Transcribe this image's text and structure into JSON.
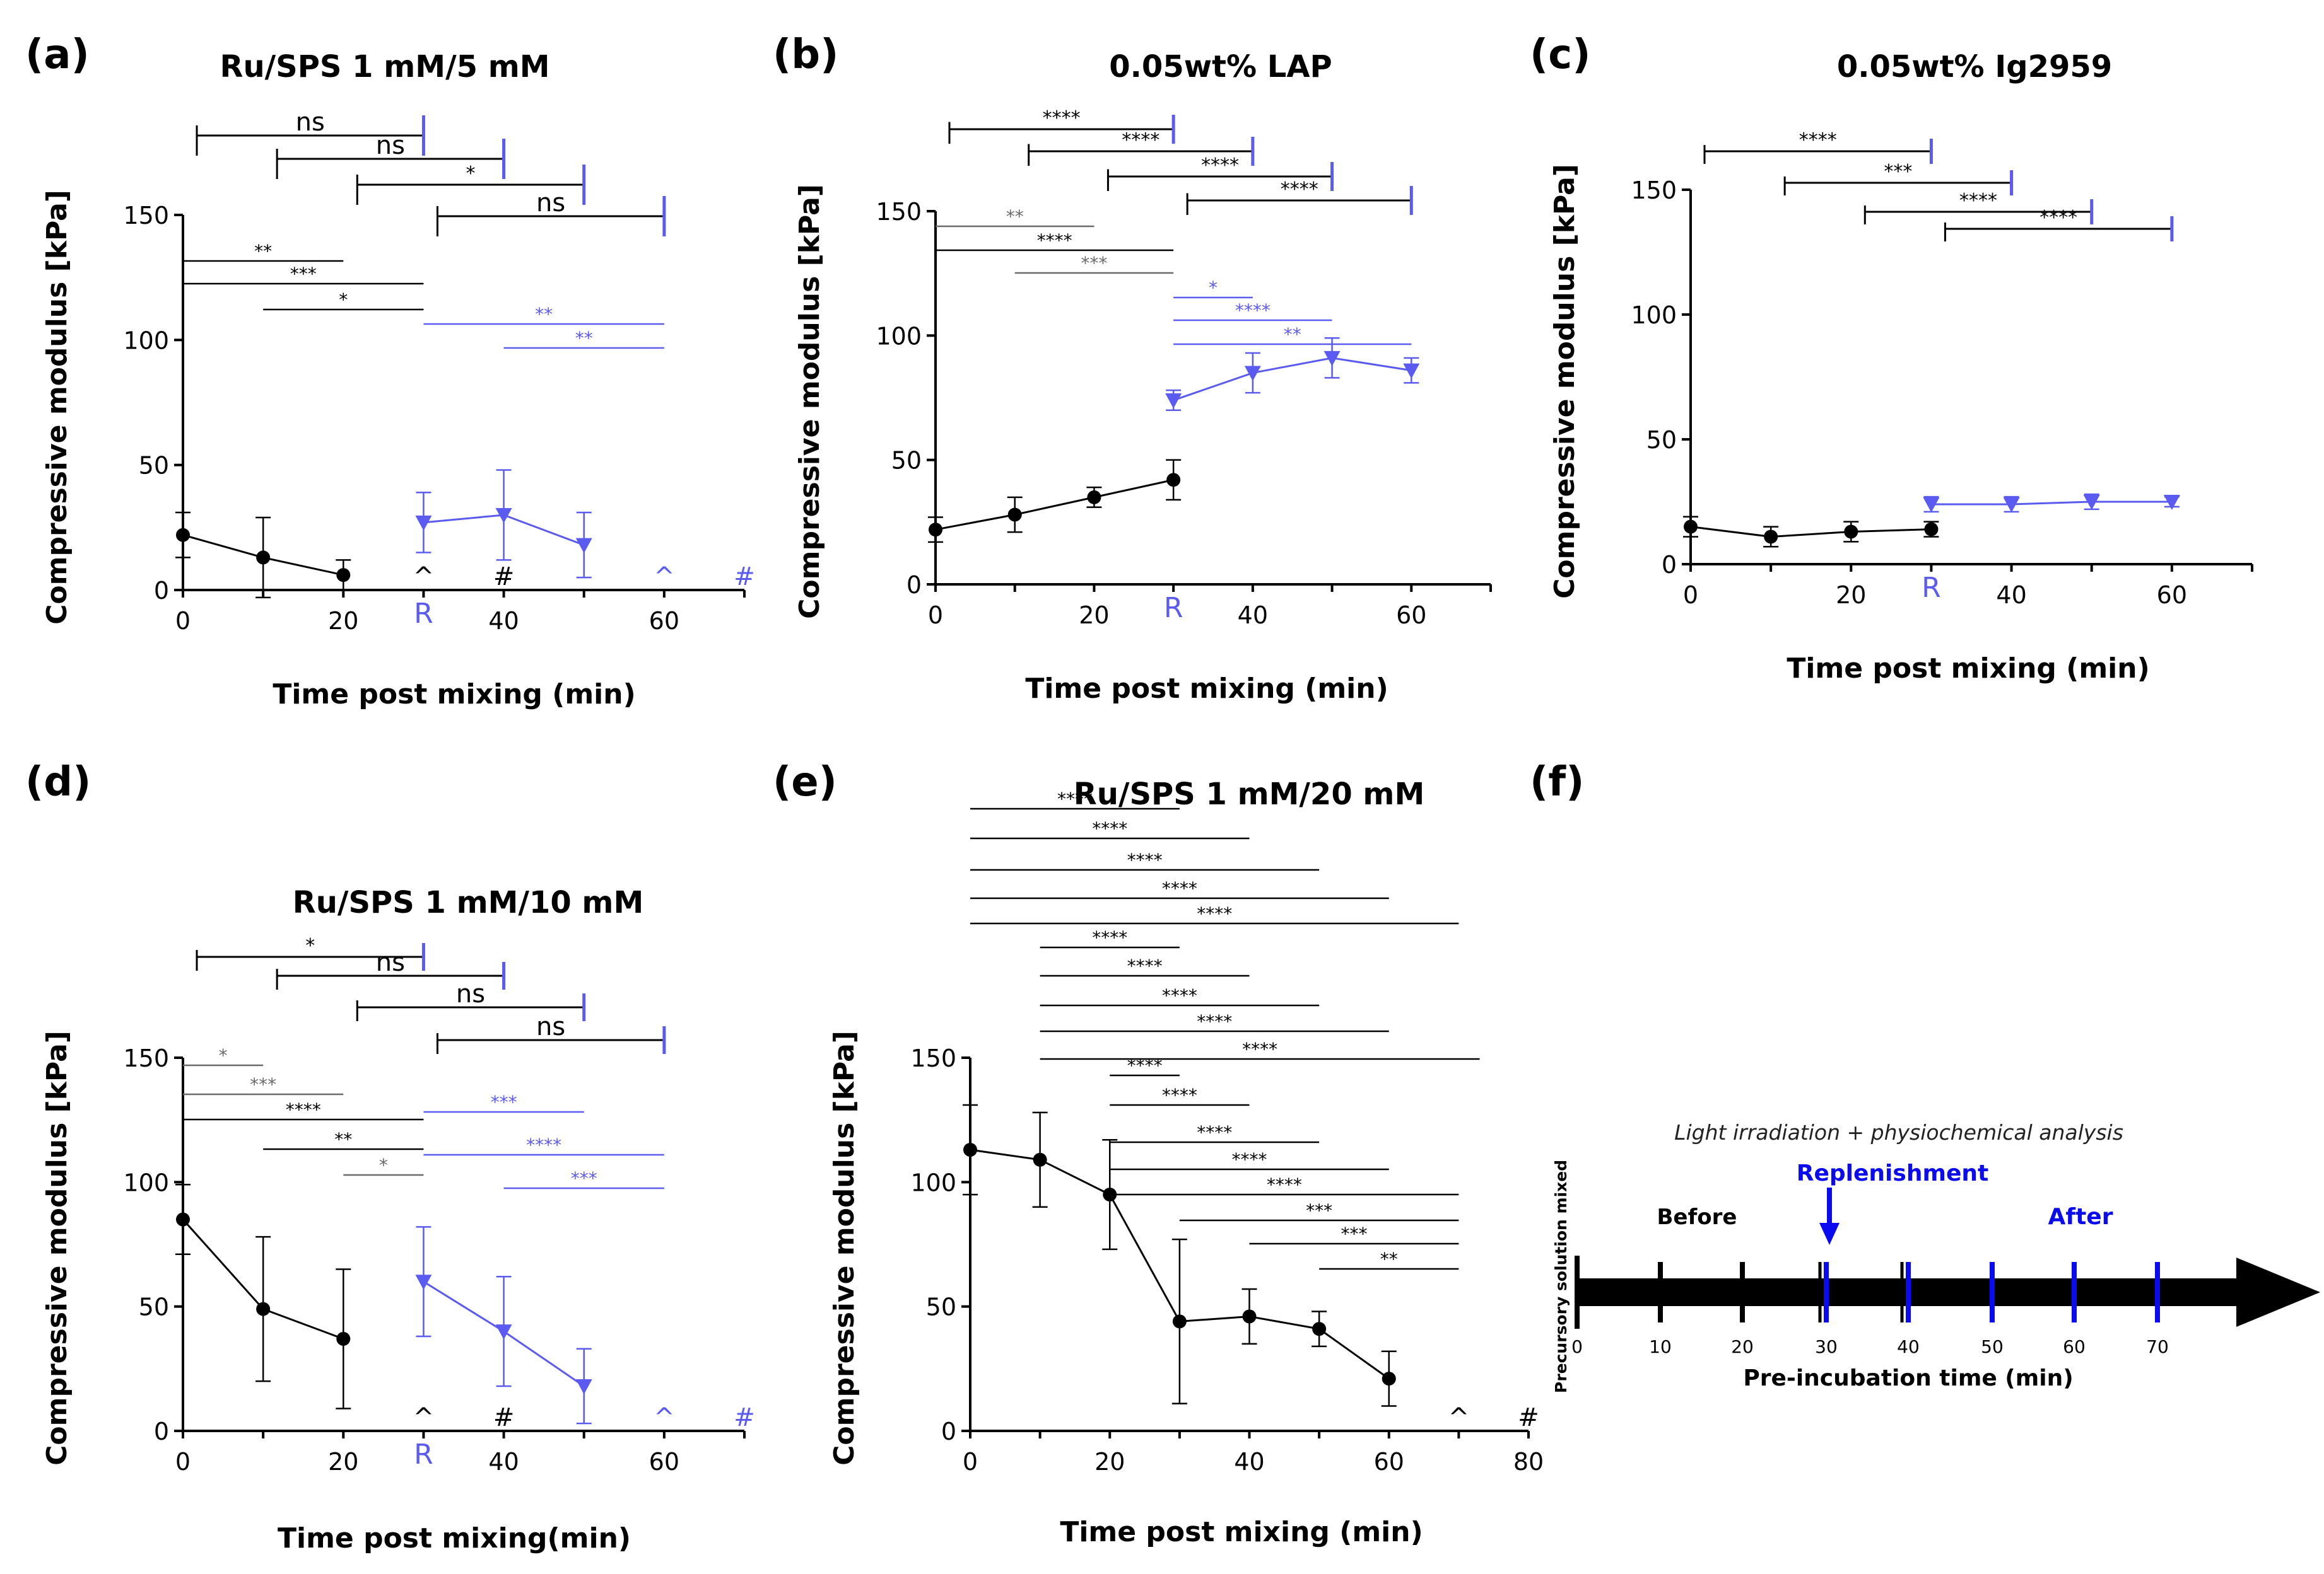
{
  "colors": {
    "black": "#000000",
    "blue": "#5b5bf2",
    "gray": "#6a6a6a",
    "arrow_blue": "#0b0bf0"
  },
  "chart_data": [
    {
      "id": "a",
      "panel_label": "(a)",
      "type": "line",
      "title": "Ru/SPS 1 mM/5 mM",
      "xlabel": "Time post mixing (min)",
      "ylabel": "Compressive modulus [kPa]",
      "xlim": [
        0,
        70
      ],
      "ylim": [
        0,
        150
      ],
      "xticks": [
        "0",
        "20",
        "40",
        "60"
      ],
      "yticks": [
        "0",
        "50",
        "100",
        "150"
      ],
      "r_label": "R",
      "series": [
        {
          "name": "before",
          "color": "black",
          "x": [
            0,
            10,
            20
          ],
          "y": [
            22,
            13,
            6
          ],
          "err": [
            9,
            16,
            6
          ]
        },
        {
          "name": "after",
          "color": "blue",
          "x": [
            30,
            40,
            50
          ],
          "y": [
            27,
            30,
            18
          ],
          "err": [
            12,
            18,
            13
          ]
        }
      ],
      "brackets_top": [
        {
          "x1": 0,
          "x2": 30,
          "label": "ns",
          "cap": "blue"
        },
        {
          "x1": 10,
          "x2": 40,
          "label": "ns",
          "cap": "blue"
        },
        {
          "x1": 20,
          "x2": 50,
          "label": "*",
          "cap": "blue"
        },
        {
          "x1": 30,
          "x2": 60,
          "label": "ns",
          "cap": "blue"
        }
      ],
      "brackets_inner": [
        {
          "x1": 0,
          "x2": 20,
          "label": "**",
          "color": "black"
        },
        {
          "x1": 0,
          "x2": 30,
          "label": "***",
          "color": "black"
        },
        {
          "x1": 10,
          "x2": 30,
          "label": "*",
          "color": "black"
        },
        {
          "x1": 30,
          "x2": 60,
          "label": "**",
          "color": "blue"
        },
        {
          "x1": 40,
          "x2": 60,
          "label": "**",
          "color": "blue"
        }
      ],
      "markers": [
        {
          "x": 30,
          "text": "^",
          "color": "black"
        },
        {
          "x": 40,
          "text": "#",
          "color": "black"
        },
        {
          "x": 60,
          "text": "^",
          "color": "blue"
        },
        {
          "x": 70,
          "text": "#",
          "color": "blue"
        }
      ]
    },
    {
      "id": "b",
      "panel_label": "(b)",
      "type": "line",
      "title": "0.05wt% LAP",
      "xlabel": "Time post mixing (min)",
      "ylabel": "Compressive modulus [kPa]",
      "xlim": [
        0,
        70
      ],
      "ylim": [
        0,
        150
      ],
      "xticks": [
        "0",
        "20",
        "40",
        "60"
      ],
      "yticks": [
        "0",
        "50",
        "100",
        "150"
      ],
      "r_label": "R",
      "series": [
        {
          "name": "before",
          "color": "black",
          "x": [
            0,
            10,
            20,
            30
          ],
          "y": [
            22,
            28,
            35,
            42
          ],
          "err": [
            5,
            7,
            4,
            8
          ]
        },
        {
          "name": "after",
          "color": "blue",
          "x": [
            30,
            40,
            50,
            60
          ],
          "y": [
            74,
            85,
            91,
            86
          ],
          "err": [
            4,
            8,
            8,
            5
          ]
        }
      ],
      "brackets_top": [
        {
          "x1": 0,
          "x2": 30,
          "label": "****",
          "cap": "blue"
        },
        {
          "x1": 10,
          "x2": 40,
          "label": "****",
          "cap": "blue"
        },
        {
          "x1": 20,
          "x2": 50,
          "label": "****",
          "cap": "blue"
        },
        {
          "x1": 30,
          "x2": 60,
          "label": "****",
          "cap": "blue"
        }
      ],
      "brackets_inner": [
        {
          "x1": 0,
          "x2": 20,
          "label": "**",
          "color": "gray"
        },
        {
          "x1": 0,
          "x2": 30,
          "label": "****",
          "color": "black"
        },
        {
          "x1": 10,
          "x2": 30,
          "label": "***",
          "color": "gray"
        },
        {
          "x1": 30,
          "x2": 40,
          "label": "*",
          "color": "blue"
        },
        {
          "x1": 30,
          "x2": 50,
          "label": "****",
          "color": "blue"
        },
        {
          "x1": 30,
          "x2": 60,
          "label": "**",
          "color": "blue"
        }
      ],
      "markers": []
    },
    {
      "id": "c",
      "panel_label": "(c)",
      "type": "line",
      "title": "0.05wt% Ig2959",
      "xlabel": "Time post mixing (min)",
      "ylabel": "Compressive modulus [kPa]",
      "xlim": [
        0,
        70
      ],
      "ylim": [
        0,
        150
      ],
      "xticks": [
        "0",
        "20",
        "40",
        "60"
      ],
      "yticks": [
        "0",
        "50",
        "100",
        "150"
      ],
      "r_label": "R",
      "series": [
        {
          "name": "before",
          "color": "black",
          "x": [
            0,
            10,
            20,
            30
          ],
          "y": [
            15,
            11,
            13,
            14
          ],
          "err": [
            4,
            4,
            4,
            3
          ]
        },
        {
          "name": "after",
          "color": "blue",
          "x": [
            30,
            40,
            50,
            60
          ],
          "y": [
            24,
            24,
            25,
            25
          ],
          "err": [
            3,
            3,
            3,
            2
          ]
        }
      ],
      "brackets_top": [
        {
          "x1": 0,
          "x2": 30,
          "label": "****",
          "cap": "blue"
        },
        {
          "x1": 10,
          "x2": 40,
          "label": "***",
          "cap": "blue"
        },
        {
          "x1": 20,
          "x2": 50,
          "label": "****",
          "cap": "blue"
        },
        {
          "x1": 30,
          "x2": 60,
          "label": "****",
          "cap": "blue"
        }
      ],
      "brackets_inner": [],
      "markers": []
    },
    {
      "id": "d",
      "panel_label": "(d)",
      "type": "line",
      "title": "Ru/SPS 1 mM/10 mM",
      "xlabel": "Time post mixing(min)",
      "ylabel": "Compressive modulus [kPa]",
      "xlim": [
        0,
        70
      ],
      "ylim": [
        0,
        150
      ],
      "xticks": [
        "0",
        "20",
        "40",
        "60"
      ],
      "yticks": [
        "0",
        "50",
        "100",
        "150"
      ],
      "r_label": "R",
      "series": [
        {
          "name": "before",
          "color": "black",
          "x": [
            0,
            10,
            20
          ],
          "y": [
            85,
            49,
            37
          ],
          "err": [
            14,
            29,
            28
          ]
        },
        {
          "name": "after",
          "color": "blue",
          "x": [
            30,
            40,
            50
          ],
          "y": [
            60,
            40,
            18
          ],
          "err": [
            22,
            22,
            15
          ]
        }
      ],
      "brackets_top": [
        {
          "x1": 0,
          "x2": 30,
          "label": "*",
          "cap": "blue"
        },
        {
          "x1": 10,
          "x2": 40,
          "label": "ns",
          "cap": "blue"
        },
        {
          "x1": 20,
          "x2": 50,
          "label": "ns",
          "cap": "blue"
        },
        {
          "x1": 30,
          "x2": 60,
          "label": "ns",
          "cap": "blue"
        }
      ],
      "brackets_inner": [
        {
          "x1": 0,
          "x2": 10,
          "label": "*",
          "color": "gray"
        },
        {
          "x1": 0,
          "x2": 20,
          "label": "***",
          "color": "gray"
        },
        {
          "x1": 0,
          "x2": 30,
          "label": "****",
          "color": "black"
        },
        {
          "x1": 10,
          "x2": 30,
          "label": "**",
          "color": "black"
        },
        {
          "x1": 20,
          "x2": 30,
          "label": "*",
          "color": "gray"
        },
        {
          "x1": 30,
          "x2": 50,
          "label": "***",
          "color": "blue"
        },
        {
          "x1": 30,
          "x2": 60,
          "label": "****",
          "color": "blue"
        },
        {
          "x1": 40,
          "x2": 60,
          "label": "***",
          "color": "blue"
        }
      ],
      "markers": [
        {
          "x": 30,
          "text": "^",
          "color": "black"
        },
        {
          "x": 40,
          "text": "#",
          "color": "black"
        },
        {
          "x": 60,
          "text": "^",
          "color": "blue"
        },
        {
          "x": 70,
          "text": "#",
          "color": "blue"
        }
      ]
    },
    {
      "id": "e",
      "panel_label": "(e)",
      "type": "line",
      "title": "Ru/SPS 1 mM/20 mM",
      "xlabel": "Time post mixing (min)",
      "ylabel": "Compressive modulus [kPa]",
      "xlim": [
        0,
        80
      ],
      "ylim": [
        0,
        150
      ],
      "xticks": [
        "0",
        "20",
        "40",
        "60",
        "80"
      ],
      "yticks": [
        "0",
        "50",
        "100",
        "150"
      ],
      "r_label": "",
      "series": [
        {
          "name": "series",
          "color": "black",
          "x": [
            0,
            10,
            20,
            30,
            40,
            50,
            60
          ],
          "y": [
            113,
            109,
            95,
            44,
            46,
            41,
            21
          ],
          "err": [
            18,
            19,
            22,
            33,
            11,
            7,
            11
          ]
        }
      ],
      "brackets_top": [],
      "brackets_inner": [
        {
          "x1": 0,
          "x2": 30,
          "label": "****",
          "color": "black"
        },
        {
          "x1": 0,
          "x2": 40,
          "label": "****",
          "color": "black"
        },
        {
          "x1": 0,
          "x2": 50,
          "label": "****",
          "color": "black"
        },
        {
          "x1": 0,
          "x2": 60,
          "label": "****",
          "color": "black"
        },
        {
          "x1": 0,
          "x2": 70,
          "label": "****",
          "color": "black"
        },
        {
          "x1": 10,
          "x2": 30,
          "label": "****",
          "color": "black"
        },
        {
          "x1": 10,
          "x2": 40,
          "label": "****",
          "color": "black"
        },
        {
          "x1": 10,
          "x2": 50,
          "label": "****",
          "color": "black"
        },
        {
          "x1": 10,
          "x2": 60,
          "label": "****",
          "color": "black"
        },
        {
          "x1": 10,
          "x2": 73,
          "label": "****",
          "color": "black"
        },
        {
          "x1": 20,
          "x2": 30,
          "label": "****",
          "color": "black"
        },
        {
          "x1": 20,
          "x2": 40,
          "label": "****",
          "color": "black"
        },
        {
          "x1": 20,
          "x2": 50,
          "label": "****",
          "color": "black"
        },
        {
          "x1": 20,
          "x2": 60,
          "label": "****",
          "color": "black"
        },
        {
          "x1": 20,
          "x2": 70,
          "label": "****",
          "color": "black"
        },
        {
          "x1": 30,
          "x2": 70,
          "label": "***",
          "color": "black"
        },
        {
          "x1": 40,
          "x2": 70,
          "label": "***",
          "color": "black"
        },
        {
          "x1": 50,
          "x2": 70,
          "label": "**",
          "color": "black"
        }
      ],
      "markers": [
        {
          "x": 70,
          "text": "^",
          "color": "black"
        },
        {
          "x": 80,
          "text": "#",
          "color": "black"
        }
      ]
    }
  ],
  "timeline": {
    "panel_label": "(f)",
    "top_label": "Light irradiation + physiochemical analysis",
    "before_label": "Before",
    "replenishment_label": "Replenishment",
    "after_label": "After",
    "vertical_label": "Precursory solution mixed",
    "xlabel": "Pre-incubation time (min)",
    "ticks": [
      "0",
      "10",
      "20",
      "30",
      "40",
      "50",
      "60",
      "70"
    ]
  }
}
